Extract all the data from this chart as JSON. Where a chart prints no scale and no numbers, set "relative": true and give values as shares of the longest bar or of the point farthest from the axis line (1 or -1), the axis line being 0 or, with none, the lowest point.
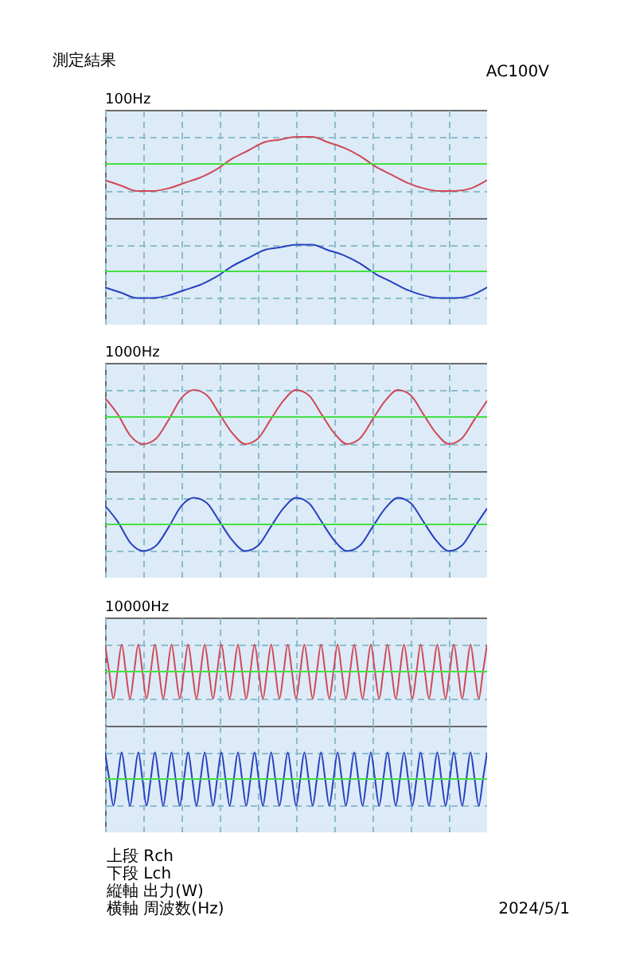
{
  "chart_data": [
    {
      "type": "line",
      "title": "100Hz",
      "annotations": [
        "測定結果",
        "AC100V"
      ],
      "relative": true,
      "grid": true,
      "ref_lines": [
        {
          "axis": "y",
          "value": 0,
          "color": "#44e044"
        }
      ],
      "categories": [
        null,
        null,
        null,
        null,
        null,
        null,
        null,
        null,
        null,
        null,
        null,
        null,
        null,
        null,
        null,
        null,
        null,
        null,
        null,
        null,
        null,
        null,
        null,
        null,
        null
      ],
      "series": [
        {
          "color": "#d04858",
          "values": [
            -0.6,
            -0.8,
            -1.0,
            -1.0,
            -0.9,
            -0.7,
            -0.5,
            -0.2,
            0.2,
            0.5,
            0.8,
            0.9,
            1.0,
            1.0,
            0.8,
            0.6,
            0.3,
            -0.1,
            -0.4,
            -0.7,
            -0.9,
            -1.0,
            -1.0,
            -0.9,
            -0.6
          ]
        }
      ]
    },
    {
      "type": "line",
      "relative": true,
      "grid": true,
      "ref_lines": [
        {
          "axis": "y",
          "value": 0,
          "color": "#44e044"
        }
      ],
      "categories": [
        null,
        null,
        null,
        null,
        null,
        null,
        null,
        null,
        null,
        null,
        null,
        null,
        null,
        null,
        null,
        null,
        null,
        null,
        null,
        null,
        null,
        null,
        null,
        null,
        null
      ],
      "series": [
        {
          "color": "#2840c0",
          "values": [
            -0.6,
            -0.8,
            -1.0,
            -1.0,
            -0.9,
            -0.7,
            -0.5,
            -0.2,
            0.2,
            0.5,
            0.8,
            0.9,
            1.0,
            1.0,
            0.8,
            0.6,
            0.3,
            -0.1,
            -0.4,
            -0.7,
            -0.9,
            -1.0,
            -1.0,
            -0.9,
            -0.6
          ]
        }
      ]
    },
    {
      "type": "line",
      "title": "1000Hz",
      "relative": true,
      "grid": true,
      "ref_lines": [
        {
          "axis": "y",
          "value": 0,
          "color": "#44e044"
        }
      ],
      "categories": [
        null,
        null,
        null,
        null,
        null,
        null,
        null,
        null,
        null,
        null,
        null,
        null,
        null,
        null,
        null,
        null,
        null,
        null,
        null,
        null,
        null,
        null,
        null,
        null,
        null,
        null,
        null,
        null,
        null,
        null,
        null
      ],
      "series": [
        {
          "color": "#d04858",
          "values": [
            0.7,
            0.1,
            -0.7,
            -1.0,
            -0.8,
            -0.1,
            0.7,
            1.0,
            0.8,
            0.1,
            -0.6,
            -1.0,
            -0.8,
            -0.1,
            0.6,
            1.0,
            0.8,
            0.1,
            -0.6,
            -1.0,
            -0.8,
            -0.1,
            0.6,
            1.0,
            0.8,
            0.1,
            -0.6,
            -1.0,
            -0.8,
            -0.1,
            0.6
          ]
        }
      ]
    },
    {
      "type": "line",
      "relative": true,
      "grid": true,
      "ref_lines": [
        {
          "axis": "y",
          "value": 0,
          "color": "#44e044"
        }
      ],
      "categories": [
        null,
        null,
        null,
        null,
        null,
        null,
        null,
        null,
        null,
        null,
        null,
        null,
        null,
        null,
        null,
        null,
        null,
        null,
        null,
        null,
        null,
        null,
        null,
        null,
        null,
        null,
        null,
        null,
        null,
        null,
        null
      ],
      "series": [
        {
          "color": "#2840c0",
          "values": [
            0.7,
            0.1,
            -0.7,
            -1.0,
            -0.8,
            -0.1,
            0.7,
            1.0,
            0.8,
            0.1,
            -0.6,
            -1.0,
            -0.8,
            -0.1,
            0.6,
            1.0,
            0.8,
            0.1,
            -0.6,
            -1.0,
            -0.8,
            -0.1,
            0.6,
            1.0,
            0.8,
            0.1,
            -0.6,
            -1.0,
            -0.8,
            -0.1,
            0.6
          ]
        }
      ]
    },
    {
      "type": "line",
      "title": "10000Hz",
      "relative": true,
      "grid": true,
      "ref_lines": [
        {
          "axis": "y",
          "value": 0,
          "color": "#44e044"
        }
      ],
      "categories": [
        null,
        null,
        null,
        null,
        null,
        null,
        null,
        null,
        null,
        null,
        null,
        null,
        null,
        null,
        null,
        null,
        null,
        null,
        null,
        null,
        null,
        null,
        null,
        null,
        null,
        null,
        null,
        null,
        null,
        null,
        null,
        null,
        null,
        null,
        null,
        null,
        null,
        null,
        null,
        null,
        null,
        null,
        null,
        null,
        null,
        null,
        null,
        null,
        null,
        null,
        null,
        null,
        null,
        null,
        null,
        null,
        null,
        null,
        null,
        null,
        null,
        null,
        null,
        null,
        null,
        null,
        null,
        null,
        null,
        null,
        null,
        null,
        null,
        null,
        null,
        null,
        null,
        null,
        null,
        null,
        null,
        null,
        null,
        null,
        null,
        null,
        null,
        null,
        null,
        null,
        null,
        null,
        null
      ],
      "series": [
        {
          "color": "#d04858",
          "values": [
            1,
            0,
            -1,
            0,
            1,
            0,
            -1,
            0,
            1,
            0,
            -1,
            0,
            1,
            0,
            -1,
            0,
            1,
            0,
            -1,
            0,
            1,
            0,
            -1,
            0,
            1,
            0,
            -1,
            0,
            1,
            0,
            -1,
            0,
            1,
            0,
            -1,
            0,
            1,
            0,
            -1,
            0,
            1,
            0,
            -1,
            0,
            1,
            0,
            -1,
            0,
            1,
            0,
            -1,
            0,
            1,
            0,
            -1,
            0,
            1,
            0,
            -1,
            0,
            1,
            0,
            -1,
            0,
            1,
            0,
            -1,
            0,
            1,
            0,
            -1,
            0,
            1,
            0,
            -1,
            0,
            1,
            0,
            -1,
            0,
            1,
            0,
            -1,
            0,
            1,
            0,
            -1,
            0,
            1,
            0,
            -1,
            0,
            1
          ]
        }
      ]
    },
    {
      "type": "line",
      "annotations": [
        "上段 Rch",
        "下段 Lch",
        "縦軸 出力(W)",
        "横軸 周波数(Hz)",
        "2024/5/1"
      ],
      "relative": true,
      "grid": true,
      "ref_lines": [
        {
          "axis": "y",
          "value": 0,
          "color": "#44e044"
        }
      ],
      "categories": [
        null,
        null,
        null,
        null,
        null,
        null,
        null,
        null,
        null,
        null,
        null,
        null,
        null,
        null,
        null,
        null,
        null,
        null,
        null,
        null,
        null,
        null,
        null,
        null,
        null,
        null,
        null,
        null,
        null,
        null,
        null,
        null,
        null,
        null,
        null,
        null,
        null,
        null,
        null,
        null,
        null,
        null,
        null,
        null,
        null,
        null,
        null,
        null,
        null,
        null,
        null,
        null,
        null,
        null,
        null,
        null,
        null,
        null,
        null,
        null,
        null,
        null,
        null,
        null,
        null,
        null,
        null,
        null,
        null,
        null,
        null,
        null,
        null,
        null,
        null,
        null,
        null,
        null,
        null,
        null,
        null,
        null,
        null,
        null,
        null,
        null,
        null,
        null,
        null,
        null,
        null,
        null,
        null
      ],
      "series": [
        {
          "color": "#2840c0",
          "values": [
            1,
            0,
            -1,
            0,
            1,
            0,
            -1,
            0,
            1,
            0,
            -1,
            0,
            1,
            0,
            -1,
            0,
            1,
            0,
            -1,
            0,
            1,
            0,
            -1,
            0,
            1,
            0,
            -1,
            0,
            1,
            0,
            -1,
            0,
            1,
            0,
            -1,
            0,
            1,
            0,
            -1,
            0,
            1,
            0,
            -1,
            0,
            1,
            0,
            -1,
            0,
            1,
            0,
            -1,
            0,
            1,
            0,
            -1,
            0,
            1,
            0,
            -1,
            0,
            1,
            0,
            -1,
            0,
            1,
            0,
            -1,
            0,
            1,
            0,
            -1,
            0,
            1,
            0,
            -1,
            0,
            1,
            0,
            -1,
            0,
            1,
            0,
            -1,
            0,
            1,
            0,
            -1,
            0,
            1,
            0,
            -1,
            0,
            1
          ]
        }
      ]
    }
  ]
}
